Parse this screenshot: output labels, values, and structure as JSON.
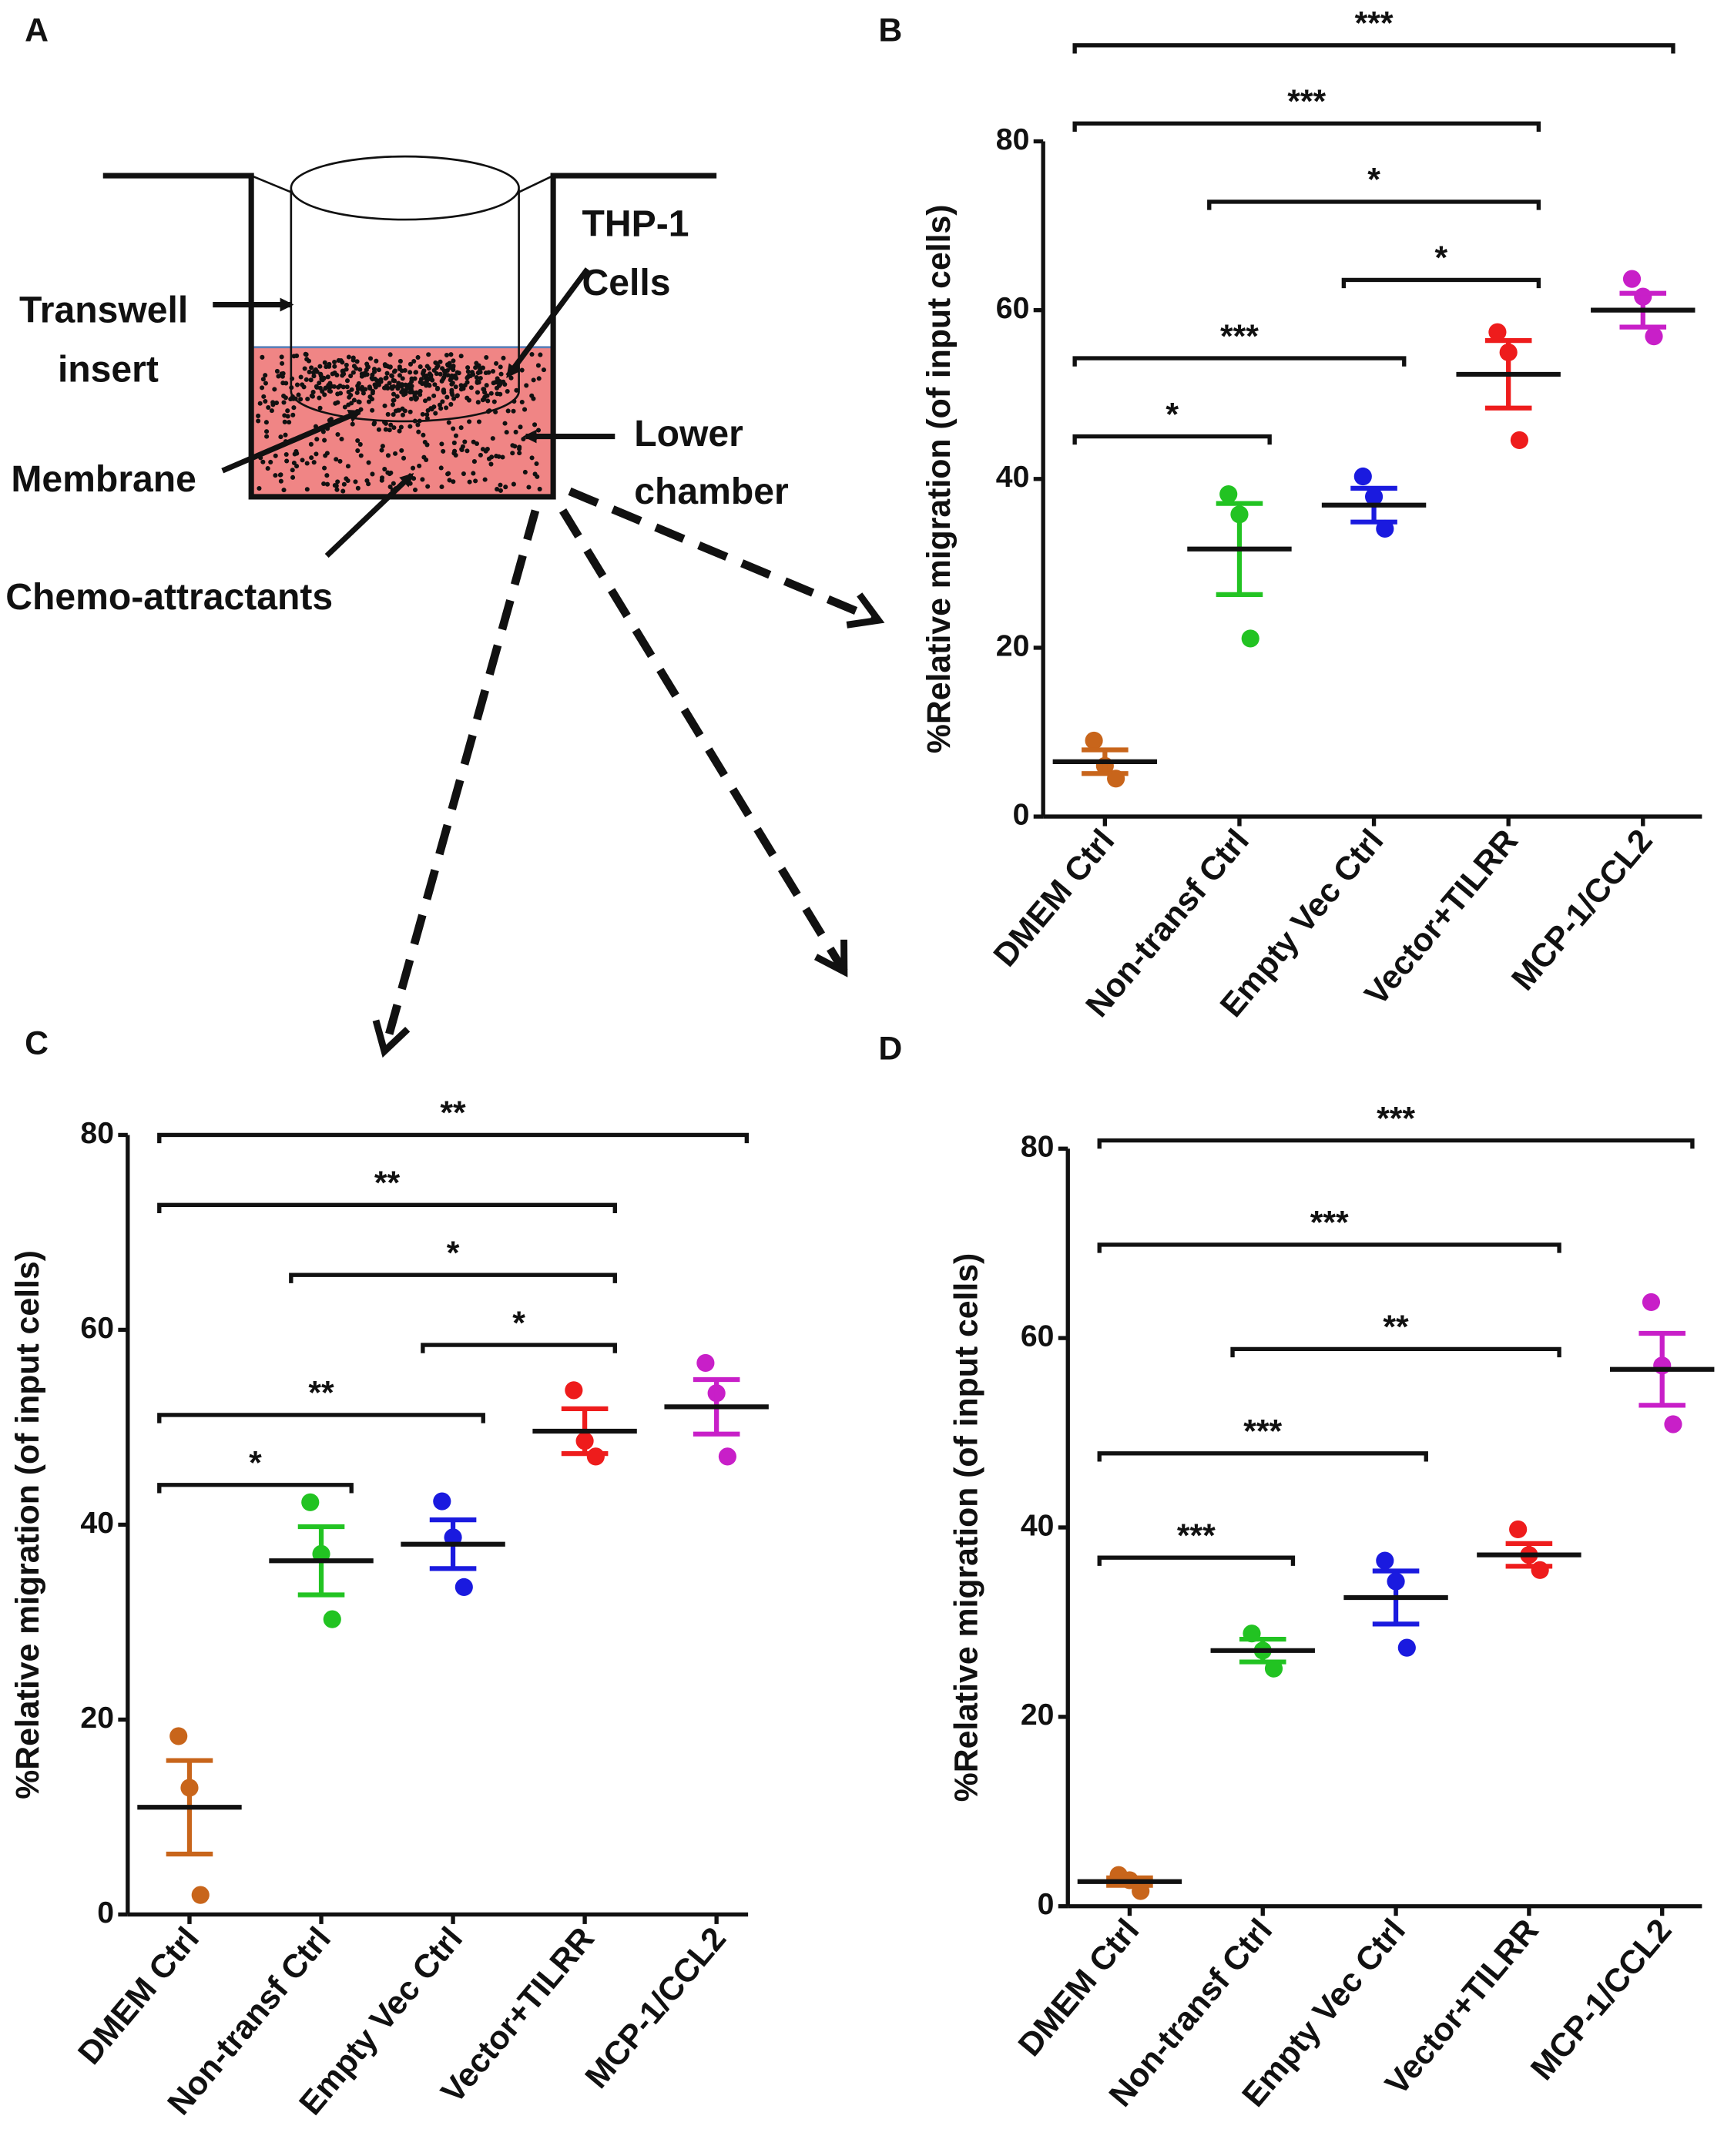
{
  "diagram": {
    "label": "A",
    "thp1": "THP-1",
    "cells": "Cells",
    "transwell": "Transwell",
    "insert": "insert",
    "membrane": "Membrane",
    "lower": "Lower",
    "chamber": "chamber",
    "chemo": "Chemo-attractants"
  },
  "chart_data": [
    {
      "type": "dot",
      "label": "B",
      "ylabel": "%Relative migration (of input cells)",
      "categories": [
        "DMEM Ctrl",
        "Non-transf Ctrl",
        "Empty Vec Ctrl",
        "Vector+TILRR",
        "MCP-1/CCL2"
      ],
      "colors": [
        "#c8651b",
        "#22c322",
        "#1a1adf",
        "#ee1c1c",
        "#c81fc8"
      ],
      "values": [
        6.5,
        31.7,
        36.9,
        52.4,
        60
      ],
      "errors": [
        1.4,
        5.4,
        2,
        4,
        2
      ],
      "points": [
        [
          9,
          6,
          4.5
        ],
        [
          38.2,
          35.8,
          21.1
        ],
        [
          40.3,
          37.9,
          34.1
        ],
        [
          57.4,
          55,
          44.6
        ],
        [
          63.7,
          61.6,
          56.9
        ]
      ],
      "ylim": [
        0,
        80
      ],
      "yticks": [
        0,
        20,
        40,
        60,
        80
      ],
      "brackets": [
        {
          "between": [
            0,
            4
          ],
          "label": "***"
        },
        {
          "between": [
            0,
            3
          ],
          "label": "***"
        },
        {
          "between": [
            1,
            3
          ],
          "label": "*"
        },
        {
          "between": [
            2,
            3
          ],
          "label": "*"
        },
        {
          "between": [
            0,
            2
          ],
          "label": "***"
        },
        {
          "between": [
            0,
            1
          ],
          "label": "*"
        }
      ]
    },
    {
      "type": "dot",
      "label": "C",
      "ylabel": "%Relative migration (of input cells)",
      "categories": [
        "DMEM Ctrl",
        "Non-transf Ctrl",
        "Empty Vec Ctrl",
        "Vector+TILRR",
        "MCP-1/CCL2"
      ],
      "colors": [
        "#c8651b",
        "#22c322",
        "#1a1adf",
        "#ee1c1c",
        "#c81fc8"
      ],
      "values": [
        11,
        36.3,
        38,
        49.6,
        52.1
      ],
      "errors": [
        4.8,
        3.5,
        2.5,
        2.3,
        2.8
      ],
      "points": [
        [
          18.3,
          13,
          2
        ],
        [
          42.3,
          37,
          30.3
        ],
        [
          42.4,
          38.7,
          33.6
        ],
        [
          53.8,
          48.6,
          47
        ],
        [
          56.6,
          53.5,
          47
        ]
      ],
      "ylim": [
        0,
        80
      ],
      "yticks": [
        0,
        20,
        40,
        60,
        80
      ],
      "brackets": [
        {
          "between": [
            0,
            4
          ],
          "label": "**"
        },
        {
          "between": [
            0,
            3
          ],
          "label": "**"
        },
        {
          "between": [
            1,
            3
          ],
          "label": "*"
        },
        {
          "between": [
            2,
            3
          ],
          "label": "*"
        },
        {
          "between": [
            0,
            2
          ],
          "label": "**"
        },
        {
          "between": [
            0,
            1
          ],
          "label": "*"
        }
      ]
    },
    {
      "type": "dot",
      "label": "D",
      "ylabel": "%Relative migration (of input cells)",
      "categories": [
        "DMEM Ctrl",
        "Non-transf Ctrl",
        "Empty Vec Ctrl",
        "Vector+TILRR",
        "MCP-1/CCL2"
      ],
      "colors": [
        "#c8651b",
        "#22c322",
        "#1a1adf",
        "#ee1c1c",
        "#c81fc8"
      ],
      "values": [
        2.6,
        27,
        32.6,
        37.1,
        56.7
      ],
      "errors": [
        0.4,
        1.2,
        2.8,
        1.2,
        3.8
      ],
      "points": [
        [
          3.3,
          2.75,
          1.6
        ],
        [
          28.8,
          27,
          25.1
        ],
        [
          36.5,
          34.3,
          27.3
        ],
        [
          39.8,
          37.1,
          35.5
        ],
        [
          63.8,
          57.1,
          50.9
        ]
      ],
      "ylim": [
        0,
        80
      ],
      "yticks": [
        0,
        20,
        40,
        60,
        80
      ],
      "brackets": [
        {
          "between": [
            0,
            4
          ],
          "label": "***"
        },
        {
          "between": [
            0,
            3
          ],
          "label": "***"
        },
        {
          "between": [
            1,
            3
          ],
          "label": "**"
        },
        {
          "between": [
            0,
            2
          ],
          "label": "***"
        },
        {
          "between": [
            0,
            1
          ],
          "label": "***"
        }
      ]
    }
  ]
}
